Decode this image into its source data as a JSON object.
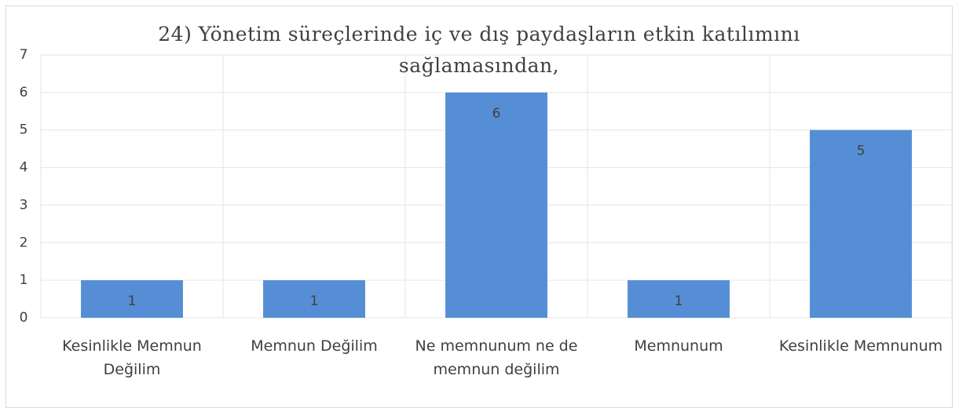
{
  "chart_data": {
    "type": "bar",
    "title": "24) Yönetim süreçlerinde iç ve dış paydaşların etkin katılımını sağlamasından,",
    "categories": [
      "Kesinlikle Memnun Değilim",
      "Memnun Değilim",
      "Ne memnunum ne de memnun değilim",
      "Memnunum",
      "Kesinlikle Memnunum"
    ],
    "values": [
      1,
      1,
      6,
      1,
      5
    ],
    "color": "#558ed5",
    "ylim": [
      0,
      7
    ],
    "yticks": [
      0,
      1,
      2,
      3,
      4,
      5,
      6,
      7
    ],
    "grid": true
  }
}
